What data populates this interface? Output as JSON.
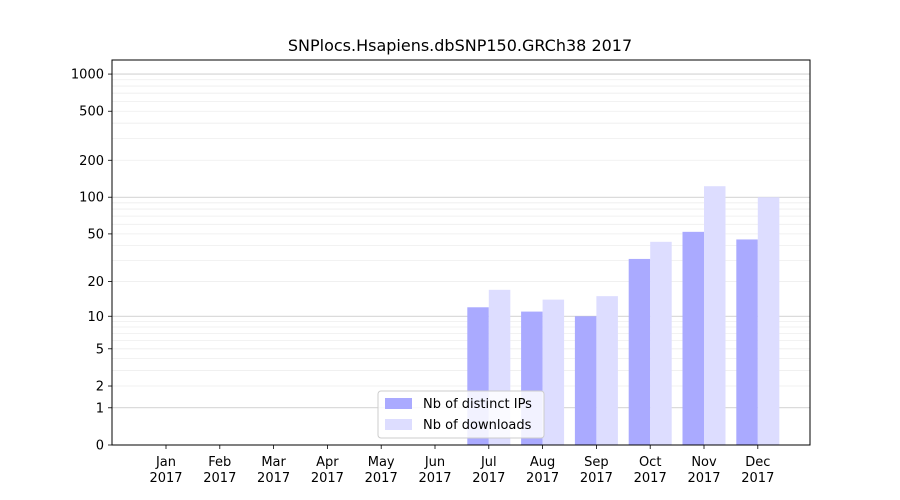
{
  "chart_data": {
    "type": "bar",
    "title": "SNPlocs.Hsapiens.dbSNP150.GRCh38 2017",
    "xlabel": "",
    "ylabel": "",
    "yscale": "log1p",
    "ylim": [
      0,
      1300
    ],
    "yticks": [
      0,
      1,
      2,
      5,
      10,
      20,
      50,
      100,
      200,
      500,
      1000
    ],
    "grid": true,
    "legend_position": "bottom-center",
    "categories": [
      [
        "Jan",
        "2017"
      ],
      [
        "Feb",
        "2017"
      ],
      [
        "Mar",
        "2017"
      ],
      [
        "Apr",
        "2017"
      ],
      [
        "May",
        "2017"
      ],
      [
        "Jun",
        "2017"
      ],
      [
        "Jul",
        "2017"
      ],
      [
        "Aug",
        "2017"
      ],
      [
        "Sep",
        "2017"
      ],
      [
        "Oct",
        "2017"
      ],
      [
        "Nov",
        "2017"
      ],
      [
        "Dec",
        "2017"
      ]
    ],
    "series": [
      {
        "name": "Nb of distinct IPs",
        "color": "#aaaaff",
        "values": [
          0,
          0,
          0,
          0,
          0,
          0,
          12,
          11,
          10,
          31,
          52,
          45
        ]
      },
      {
        "name": "Nb of downloads",
        "color": "#ddddff",
        "values": [
          0,
          0,
          0,
          0,
          0,
          0,
          17,
          14,
          15,
          43,
          123,
          100
        ]
      }
    ]
  }
}
